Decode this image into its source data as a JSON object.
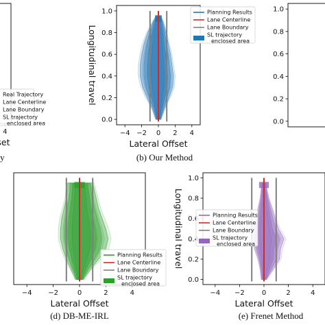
{
  "chart_data": [
    {
      "id": "a",
      "type": "area",
      "caption": "ory",
      "xlabel": "Lateral Offset",
      "ylabel": "",
      "xticks": [
        "4"
      ],
      "yticks": [],
      "legend": {
        "placement": "bottom-right",
        "entries": [
          {
            "label": "Real Trajectory",
            "kind": "line",
            "color": "#d62728"
          },
          {
            "label": "Lane Centerline",
            "kind": "line",
            "color": "#d62728"
          },
          {
            "label": "Lane Boundary",
            "kind": "line",
            "color": "#808080"
          },
          {
            "label": "SL trajectory\nenclosed area",
            "kind": "patch",
            "color": "#d62728"
          }
        ]
      },
      "xlim": [
        -6,
        5
      ],
      "ylim": [
        -0.05,
        1.05
      ],
      "colors": {
        "fill": "#d62728"
      }
    },
    {
      "id": "b",
      "type": "area",
      "caption": "(b) Our Method",
      "xlabel": "Lateral Offset",
      "ylabel": "Longitudinal travel",
      "xticks": [
        "−4",
        "−2",
        "0",
        "2",
        "4"
      ],
      "yticks": [
        "0.0",
        "0.2",
        "0.4",
        "0.6",
        "0.8",
        "1.0"
      ],
      "legend": {
        "placement": "top-right",
        "entries": [
          {
            "label": "Planning Results",
            "kind": "line",
            "color": "#1f77b4"
          },
          {
            "label": "Lane Centerline",
            "kind": "line",
            "color": "#d62728"
          },
          {
            "label": "Lane Boundary",
            "kind": "line",
            "color": "#808080"
          },
          {
            "label": "SL trajectory\nenclosed area",
            "kind": "patch",
            "color": "#1f77b4"
          }
        ]
      },
      "xlim": [
        -5,
        5
      ],
      "ylim": [
        -0.05,
        1.05
      ],
      "lane_centerline": 0,
      "lane_boundaries": [
        -1,
        1
      ],
      "envelope": {
        "y": [
          0.0,
          0.1,
          0.2,
          0.3,
          0.4,
          0.5,
          0.6,
          0.7,
          0.8,
          0.9,
          0.95
        ],
        "left": [
          -0.3,
          -0.8,
          -1.5,
          -2.1,
          -2.4,
          -2.4,
          -2.2,
          -1.9,
          -1.4,
          -0.7,
          -0.3
        ],
        "right": [
          0.3,
          0.8,
          1.4,
          1.9,
          2.0,
          1.8,
          1.6,
          1.3,
          1.0,
          0.6,
          0.3
        ]
      },
      "colors": {
        "fill": "#1f77b4"
      }
    },
    {
      "id": "c",
      "type": "area",
      "caption": "",
      "xlabel": "",
      "ylabel": "",
      "xticks": [],
      "yticks": [
        "0.0",
        "0.2",
        "0.4",
        "0.6",
        "0.8",
        "1.0"
      ],
      "legend": null
    },
    {
      "id": "d",
      "type": "area",
      "caption": "(d) DB-ME-IRL",
      "xlabel": "Lateral Offset",
      "ylabel": "",
      "xticks": [
        "−4",
        "−2",
        "0",
        "2",
        "4"
      ],
      "yticks": [],
      "legend": {
        "placement": "bottom-right",
        "entries": [
          {
            "label": "Planning Results",
            "kind": "line",
            "color": "#2ca02c"
          },
          {
            "label": "Lane Centerline",
            "kind": "line",
            "color": "#d62728"
          },
          {
            "label": "Lane Boundary",
            "kind": "line",
            "color": "#808080"
          },
          {
            "label": "SL trajectory\nenclosed area",
            "kind": "patch",
            "color": "#2ca02c"
          }
        ]
      },
      "xlim": [
        -5,
        5
      ],
      "ylim": [
        -0.05,
        1.05
      ],
      "lane_centerline": 0,
      "lane_boundaries": [
        -1,
        1
      ],
      "envelope": {
        "y": [
          0.0,
          0.1,
          0.2,
          0.3,
          0.4,
          0.5,
          0.6,
          0.7,
          0.8,
          0.9,
          0.95
        ],
        "left": [
          -0.3,
          -0.7,
          -1.1,
          -1.4,
          -1.6,
          -1.6,
          -1.5,
          -1.3,
          -1.1,
          -1.0,
          -1.0
        ],
        "right": [
          0.3,
          0.9,
          1.6,
          2.2,
          2.4,
          2.2,
          1.9,
          1.6,
          1.4,
          1.2,
          1.1
        ]
      },
      "colors": {
        "fill": "#2ca02c"
      }
    },
    {
      "id": "e",
      "type": "area",
      "caption": "(e) Frenet Method",
      "xlabel": "Lateral Offset",
      "ylabel": "Longitudinal travel",
      "xticks": [
        "−4",
        "−2",
        "0",
        "2",
        "4"
      ],
      "yticks": [
        "0.0",
        "0.2",
        "0.4",
        "0.6",
        "0.8",
        "1.0"
      ],
      "legend": {
        "placement": "top-right",
        "entries": [
          {
            "label": "Planning Results",
            "kind": "line",
            "color": "#9467bd"
          },
          {
            "label": "Lane Centerline",
            "kind": "line",
            "color": "#d62728"
          },
          {
            "label": "Lane Boundary",
            "kind": "line",
            "color": "#808080"
          },
          {
            "label": "SL trajectory\nenclosed area",
            "kind": "patch",
            "color": "#9467bd"
          }
        ]
      },
      "xlim": [
        -5,
        5
      ],
      "ylim": [
        -0.05,
        1.05
      ],
      "lane_centerline": 0,
      "lane_boundaries": [
        -1,
        1
      ],
      "envelope": {
        "y": [
          0.0,
          0.1,
          0.2,
          0.3,
          0.4,
          0.5,
          0.6,
          0.7,
          0.8,
          0.9,
          0.95
        ],
        "left": [
          -0.2,
          -0.3,
          -0.5,
          -0.8,
          -1.0,
          -0.9,
          -0.7,
          -0.5,
          -0.3,
          -0.2,
          -0.1
        ],
        "right": [
          0.2,
          0.8,
          1.4,
          1.5,
          1.8,
          1.3,
          1.0,
          0.7,
          0.4,
          0.2,
          0.1
        ]
      },
      "colors": {
        "fill": "#9467bd"
      }
    }
  ]
}
